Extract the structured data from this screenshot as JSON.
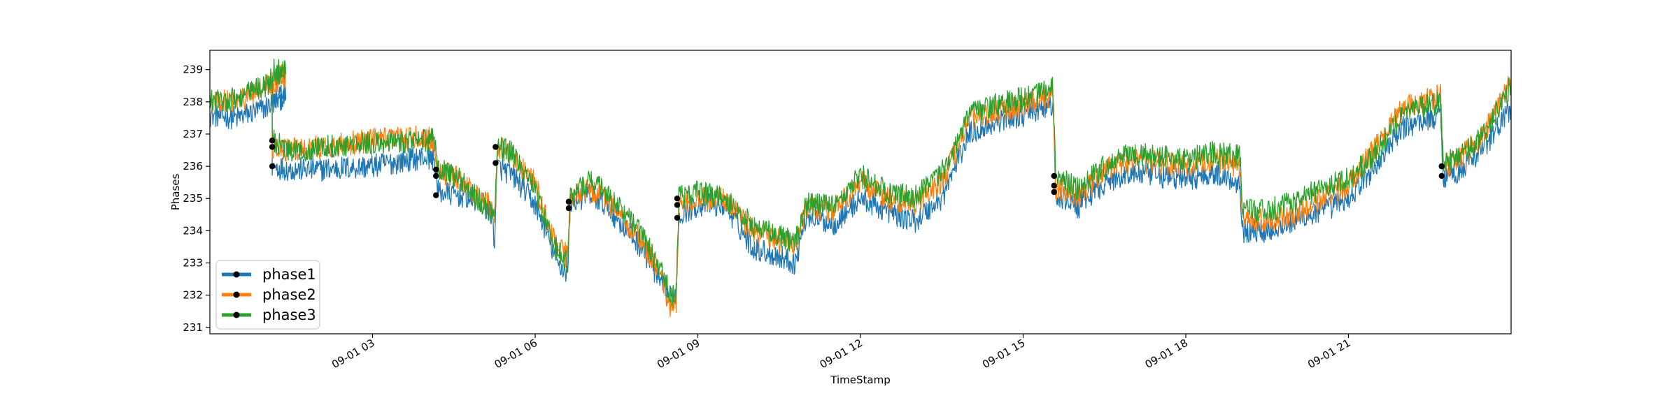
{
  "chart_data": {
    "type": "line",
    "xlabel": "TimeStamp",
    "ylabel": "Phases",
    "x_range_hours": [
      0,
      24
    ],
    "ylim": [
      230.8,
      239.6
    ],
    "y_ticks": [
      231,
      232,
      233,
      234,
      235,
      236,
      237,
      238,
      239
    ],
    "x_ticks": [
      {
        "hour": 3,
        "label": "09-01 03"
      },
      {
        "hour": 6,
        "label": "09-01 06"
      },
      {
        "hour": 9,
        "label": "09-01 09"
      },
      {
        "hour": 12,
        "label": "09-01 12"
      },
      {
        "hour": 15,
        "label": "09-01 15"
      },
      {
        "hour": 18,
        "label": "09-01 18"
      },
      {
        "hour": 21,
        "label": "09-01 21"
      }
    ],
    "grid": false,
    "legend_position": "lower-left",
    "series": [
      {
        "name": "phase1",
        "color": "#1f77b4",
        "points": [
          [
            0,
            237.6
          ],
          [
            0.5,
            237.5
          ],
          [
            1.0,
            237.8
          ],
          [
            1.4,
            238.2
          ],
          [
            1.15,
            238.1
          ],
          [
            1.15,
            236.0
          ],
          [
            1.5,
            235.9
          ],
          [
            2.0,
            235.9
          ],
          [
            3.0,
            236.0
          ],
          [
            4.0,
            236.3
          ],
          [
            4.15,
            236.2
          ],
          [
            4.2,
            235.2
          ],
          [
            4.6,
            235.1
          ],
          [
            5.0,
            234.9
          ],
          [
            5.2,
            234.5
          ],
          [
            5.25,
            233.7
          ],
          [
            5.3,
            236.0
          ],
          [
            5.6,
            235.7
          ],
          [
            6.0,
            234.8
          ],
          [
            6.2,
            234.0
          ],
          [
            6.4,
            233.0
          ],
          [
            6.6,
            232.7
          ],
          [
            6.65,
            234.9
          ],
          [
            7.0,
            235.1
          ],
          [
            7.3,
            234.8
          ],
          [
            7.6,
            234.2
          ],
          [
            8.0,
            233.4
          ],
          [
            8.3,
            232.4
          ],
          [
            8.5,
            231.9
          ],
          [
            8.6,
            232.0
          ],
          [
            8.65,
            234.5
          ],
          [
            9.0,
            234.8
          ],
          [
            9.5,
            234.8
          ],
          [
            10.0,
            233.5
          ],
          [
            10.5,
            233.2
          ],
          [
            10.8,
            233.0
          ],
          [
            11.0,
            234.5
          ],
          [
            11.5,
            234.2
          ],
          [
            12.0,
            235.0
          ],
          [
            12.5,
            234.6
          ],
          [
            13.0,
            234.3
          ],
          [
            13.5,
            235.0
          ],
          [
            14.0,
            237.0
          ],
          [
            14.5,
            237.4
          ],
          [
            15.0,
            237.6
          ],
          [
            15.55,
            237.9
          ],
          [
            15.6,
            235.0
          ],
          [
            15.8,
            235.0
          ],
          [
            16.0,
            234.7
          ],
          [
            16.5,
            235.5
          ],
          [
            17.0,
            235.8
          ],
          [
            17.5,
            235.7
          ],
          [
            18.0,
            235.6
          ],
          [
            18.5,
            235.8
          ],
          [
            19.0,
            235.5
          ],
          [
            19.05,
            234.0
          ],
          [
            19.5,
            234.0
          ],
          [
            20.0,
            234.3
          ],
          [
            20.5,
            234.6
          ],
          [
            21.0,
            235.0
          ],
          [
            21.5,
            236.0
          ],
          [
            22.0,
            237.2
          ],
          [
            22.7,
            237.6
          ],
          [
            22.75,
            235.7
          ],
          [
            23.0,
            235.8
          ],
          [
            23.5,
            236.6
          ],
          [
            24.0,
            237.8
          ]
        ]
      },
      {
        "name": "phase2",
        "color": "#ff7f0e",
        "points": [
          [
            0,
            238.0
          ],
          [
            0.5,
            238.0
          ],
          [
            1.0,
            238.4
          ],
          [
            1.4,
            238.8
          ],
          [
            1.15,
            238.8
          ],
          [
            1.15,
            236.6
          ],
          [
            1.5,
            236.5
          ],
          [
            2.0,
            236.6
          ],
          [
            3.0,
            236.8
          ],
          [
            4.0,
            236.9
          ],
          [
            4.15,
            236.8
          ],
          [
            4.2,
            235.9
          ],
          [
            4.6,
            235.6
          ],
          [
            5.0,
            235.0
          ],
          [
            5.2,
            234.7
          ],
          [
            5.25,
            234.3
          ],
          [
            5.3,
            236.6
          ],
          [
            5.6,
            236.3
          ],
          [
            6.0,
            235.5
          ],
          [
            6.2,
            234.4
          ],
          [
            6.4,
            233.5
          ],
          [
            6.6,
            233.2
          ],
          [
            6.65,
            235.0
          ],
          [
            7.0,
            235.3
          ],
          [
            7.3,
            235.0
          ],
          [
            7.6,
            234.4
          ],
          [
            8.0,
            233.6
          ],
          [
            8.3,
            232.6
          ],
          [
            8.5,
            231.6
          ],
          [
            8.6,
            231.8
          ],
          [
            8.65,
            234.8
          ],
          [
            9.0,
            235.0
          ],
          [
            9.5,
            235.0
          ],
          [
            10.0,
            234.0
          ],
          [
            10.5,
            233.7
          ],
          [
            10.8,
            233.5
          ],
          [
            11.0,
            234.7
          ],
          [
            11.5,
            234.6
          ],
          [
            12.0,
            235.5
          ],
          [
            12.5,
            235.0
          ],
          [
            13.0,
            234.8
          ],
          [
            13.5,
            235.5
          ],
          [
            14.0,
            237.4
          ],
          [
            14.5,
            237.7
          ],
          [
            15.0,
            237.9
          ],
          [
            15.55,
            238.2
          ],
          [
            15.6,
            235.3
          ],
          [
            15.8,
            235.2
          ],
          [
            16.0,
            235.0
          ],
          [
            16.5,
            235.9
          ],
          [
            17.0,
            236.2
          ],
          [
            17.5,
            236.1
          ],
          [
            18.0,
            236.0
          ],
          [
            18.5,
            236.2
          ],
          [
            19.0,
            236.0
          ],
          [
            19.05,
            234.4
          ],
          [
            19.5,
            234.3
          ],
          [
            20.0,
            234.5
          ],
          [
            20.5,
            235.0
          ],
          [
            21.0,
            235.4
          ],
          [
            21.5,
            236.6
          ],
          [
            22.0,
            237.8
          ],
          [
            22.7,
            238.2
          ],
          [
            22.75,
            236.0
          ],
          [
            23.0,
            236.2
          ],
          [
            23.5,
            237.0
          ],
          [
            24.0,
            238.7
          ]
        ]
      },
      {
        "name": "phase3",
        "color": "#2ca02c",
        "points": [
          [
            0,
            238.0
          ],
          [
            0.5,
            238.1
          ],
          [
            1.0,
            238.5
          ],
          [
            1.4,
            239.0
          ],
          [
            1.15,
            239.0
          ],
          [
            1.15,
            236.8
          ],
          [
            1.5,
            236.4
          ],
          [
            2.0,
            236.6
          ],
          [
            3.0,
            236.7
          ],
          [
            4.0,
            236.8
          ],
          [
            4.15,
            236.8
          ],
          [
            4.2,
            236.0
          ],
          [
            4.6,
            235.6
          ],
          [
            5.0,
            234.9
          ],
          [
            5.2,
            234.6
          ],
          [
            5.25,
            234.5
          ],
          [
            5.3,
            236.6
          ],
          [
            5.6,
            236.4
          ],
          [
            6.0,
            235.3
          ],
          [
            6.2,
            234.2
          ],
          [
            6.4,
            233.4
          ],
          [
            6.6,
            233.0
          ],
          [
            6.65,
            235.0
          ],
          [
            7.0,
            235.6
          ],
          [
            7.3,
            235.2
          ],
          [
            7.6,
            234.6
          ],
          [
            8.0,
            233.8
          ],
          [
            8.3,
            232.8
          ],
          [
            8.5,
            232.0
          ],
          [
            8.6,
            232.1
          ],
          [
            8.65,
            235.0
          ],
          [
            9.0,
            235.2
          ],
          [
            9.5,
            235.0
          ],
          [
            10.0,
            234.2
          ],
          [
            10.5,
            233.8
          ],
          [
            10.8,
            233.7
          ],
          [
            11.0,
            234.8
          ],
          [
            11.5,
            234.8
          ],
          [
            12.0,
            235.7
          ],
          [
            12.5,
            235.2
          ],
          [
            13.0,
            235.0
          ],
          [
            13.5,
            235.8
          ],
          [
            14.0,
            237.6
          ],
          [
            14.5,
            237.9
          ],
          [
            15.0,
            238.1
          ],
          [
            15.55,
            238.4
          ],
          [
            15.6,
            235.7
          ],
          [
            15.8,
            235.5
          ],
          [
            16.0,
            235.3
          ],
          [
            16.5,
            236.0
          ],
          [
            17.0,
            236.4
          ],
          [
            17.5,
            236.3
          ],
          [
            18.0,
            236.2
          ],
          [
            18.5,
            236.4
          ],
          [
            19.0,
            236.3
          ],
          [
            19.05,
            234.6
          ],
          [
            19.5,
            234.6
          ],
          [
            20.0,
            234.9
          ],
          [
            20.5,
            235.3
          ],
          [
            21.0,
            235.6
          ],
          [
            21.5,
            236.4
          ],
          [
            22.0,
            237.6
          ],
          [
            22.7,
            238.0
          ],
          [
            22.75,
            236.1
          ],
          [
            23.0,
            236.2
          ],
          [
            23.5,
            237.0
          ],
          [
            24.0,
            238.5
          ]
        ]
      }
    ],
    "markers": [
      {
        "hour": 1.15,
        "values": [
          236.0,
          236.6,
          236.8
        ]
      },
      {
        "hour": 4.17,
        "values": [
          235.1,
          235.7,
          235.9
        ]
      },
      {
        "hour": 5.27,
        "values": [
          236.1,
          236.6,
          236.6
        ]
      },
      {
        "hour": 6.62,
        "values": [
          234.7,
          234.9,
          234.9
        ]
      },
      {
        "hour": 8.62,
        "values": [
          234.4,
          234.8,
          235.0
        ]
      },
      {
        "hour": 15.57,
        "values": [
          235.2,
          235.4,
          235.7
        ]
      },
      {
        "hour": 22.72,
        "values": [
          235.7,
          236.0,
          236.0
        ]
      }
    ]
  }
}
